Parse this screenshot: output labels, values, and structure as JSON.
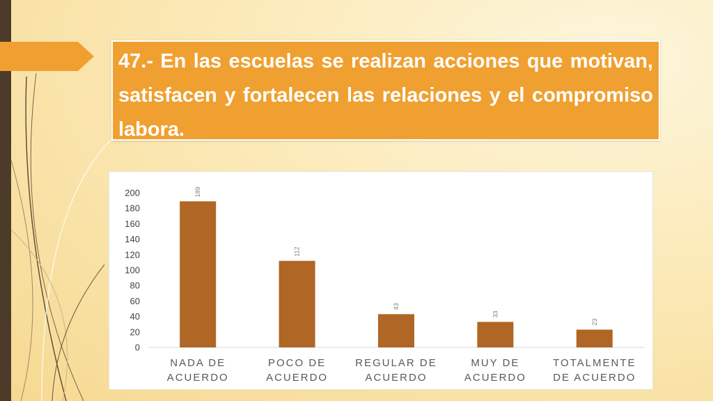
{
  "slide": {
    "title": "47.- En las escuelas se realizan acciones que motivan, satisfacen y fortalecen las relaciones y el compromiso labora."
  },
  "colors": {
    "title_bg": "#f0a030",
    "bar": "#b06624",
    "side_bar": "#4d3b2a"
  },
  "chart_data": {
    "type": "bar",
    "categories": [
      [
        "NADA DE",
        "ACUERDO"
      ],
      [
        "POCO DE",
        "ACUERDO"
      ],
      [
        "REGULAR DE",
        "ACUERDO"
      ],
      [
        "MUY DE",
        "ACUERDO"
      ],
      [
        "TOTALMENTE",
        "DE ACUERDO"
      ]
    ],
    "values": [
      189,
      112,
      43,
      33,
      23
    ],
    "data_labels": [
      "189",
      "112",
      "43",
      "33",
      "23"
    ],
    "yticks": [
      "0",
      "20",
      "40",
      "60",
      "80",
      "100",
      "120",
      "140",
      "160",
      "180",
      "200"
    ],
    "ylim": [
      0,
      200
    ],
    "grid": false,
    "legend": "none",
    "title": "",
    "xlabel": "",
    "ylabel": ""
  }
}
